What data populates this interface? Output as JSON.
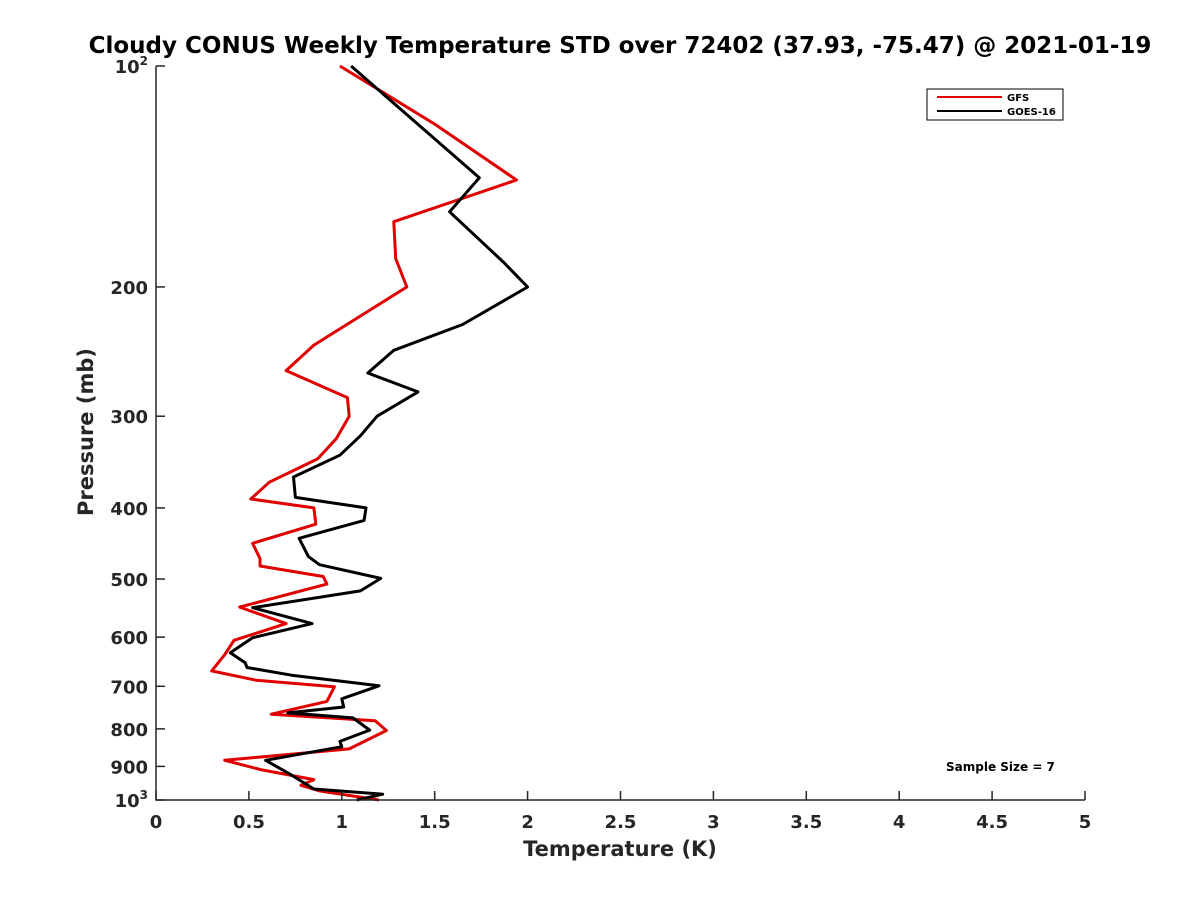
{
  "chart_data": {
    "type": "line",
    "title": "Cloudy CONUS Weekly Temperature STD over 72402 (37.93, -75.47) @ 2021-01-19",
    "xlabel": "Temperature (K)",
    "ylabel": "Pressure (mb)",
    "xlim": [
      0,
      5
    ],
    "ylim": [
      100,
      1000
    ],
    "y_scale": "log",
    "y_reversed": true,
    "grid": false,
    "legend_position": "top-right",
    "x_ticks": [
      {
        "value": 0,
        "label": "0"
      },
      {
        "value": 0.5,
        "label": "0.5"
      },
      {
        "value": 1,
        "label": "1"
      },
      {
        "value": 1.5,
        "label": "1.5"
      },
      {
        "value": 2,
        "label": "2"
      },
      {
        "value": 2.5,
        "label": "2.5"
      },
      {
        "value": 3,
        "label": "3"
      },
      {
        "value": 3.5,
        "label": "3.5"
      },
      {
        "value": 4,
        "label": "4"
      },
      {
        "value": 4.5,
        "label": "4.5"
      },
      {
        "value": 5,
        "label": "5"
      }
    ],
    "y_ticks": [
      {
        "value": 100,
        "base": "10",
        "exp": "2"
      },
      {
        "value": 200,
        "label": "200"
      },
      {
        "value": 300,
        "label": "300"
      },
      {
        "value": 400,
        "label": "400"
      },
      {
        "value": 500,
        "label": "500"
      },
      {
        "value": 600,
        "label": "600"
      },
      {
        "value": 700,
        "label": "700"
      },
      {
        "value": 800,
        "label": "800"
      },
      {
        "value": 900,
        "label": "900"
      },
      {
        "value": 1000,
        "base": "10",
        "exp": "3"
      }
    ],
    "annotation": "Sample Size = 7",
    "series": [
      {
        "name": "GFS",
        "color": "#e00000",
        "points": [
          [
            0.99,
            100
          ],
          [
            1.5,
            120
          ],
          [
            1.94,
            143
          ],
          [
            1.28,
            163
          ],
          [
            1.29,
            183
          ],
          [
            1.35,
            200
          ],
          [
            0.85,
            240
          ],
          [
            0.7,
            260
          ],
          [
            1.03,
            283
          ],
          [
            1.04,
            300
          ],
          [
            0.97,
            322
          ],
          [
            0.87,
            343
          ],
          [
            0.61,
            369
          ],
          [
            0.51,
            389
          ],
          [
            0.85,
            400
          ],
          [
            0.86,
            421
          ],
          [
            0.52,
            447
          ],
          [
            0.56,
            469
          ],
          [
            0.56,
            480
          ],
          [
            0.9,
            496
          ],
          [
            0.92,
            508
          ],
          [
            0.45,
            546
          ],
          [
            0.7,
            575
          ],
          [
            0.42,
            606
          ],
          [
            0.37,
            634
          ],
          [
            0.3,
            667
          ],
          [
            0.54,
            687
          ],
          [
            0.96,
            701
          ],
          [
            0.92,
            734
          ],
          [
            0.62,
            764
          ],
          [
            1.18,
            780
          ],
          [
            1.24,
            804
          ],
          [
            1.04,
            852
          ],
          [
            0.37,
            883
          ],
          [
            0.57,
            910
          ],
          [
            0.85,
            938
          ],
          [
            0.78,
            955
          ],
          [
            0.88,
            972
          ],
          [
            1.2,
            1000
          ]
        ]
      },
      {
        "name": "GOES-16",
        "color": "#000000",
        "points": [
          [
            1.05,
            100
          ],
          [
            1.74,
            142
          ],
          [
            1.58,
            158
          ],
          [
            1.87,
            185
          ],
          [
            2.0,
            200
          ],
          [
            1.65,
            225
          ],
          [
            1.28,
            244
          ],
          [
            1.14,
            262
          ],
          [
            1.41,
            278
          ],
          [
            1.19,
            300
          ],
          [
            1.1,
            319
          ],
          [
            0.99,
            339
          ],
          [
            0.74,
            363
          ],
          [
            0.75,
            387
          ],
          [
            1.13,
            400
          ],
          [
            1.12,
            416
          ],
          [
            0.77,
            440
          ],
          [
            0.82,
            466
          ],
          [
            0.88,
            478
          ],
          [
            1.21,
            499
          ],
          [
            1.1,
            519
          ],
          [
            0.52,
            547
          ],
          [
            0.84,
            575
          ],
          [
            0.52,
            601
          ],
          [
            0.4,
            630
          ],
          [
            0.48,
            650
          ],
          [
            0.49,
            660
          ],
          [
            0.73,
            676
          ],
          [
            1.2,
            699
          ],
          [
            1.0,
            728
          ],
          [
            1.01,
            747
          ],
          [
            0.71,
            761
          ],
          [
            1.06,
            773
          ],
          [
            1.15,
            803
          ],
          [
            0.99,
            832
          ],
          [
            1.0,
            846
          ],
          [
            0.59,
            883
          ],
          [
            0.73,
            925
          ],
          [
            0.85,
            966
          ],
          [
            1.22,
            982
          ],
          [
            1.08,
            1000
          ]
        ]
      }
    ]
  }
}
